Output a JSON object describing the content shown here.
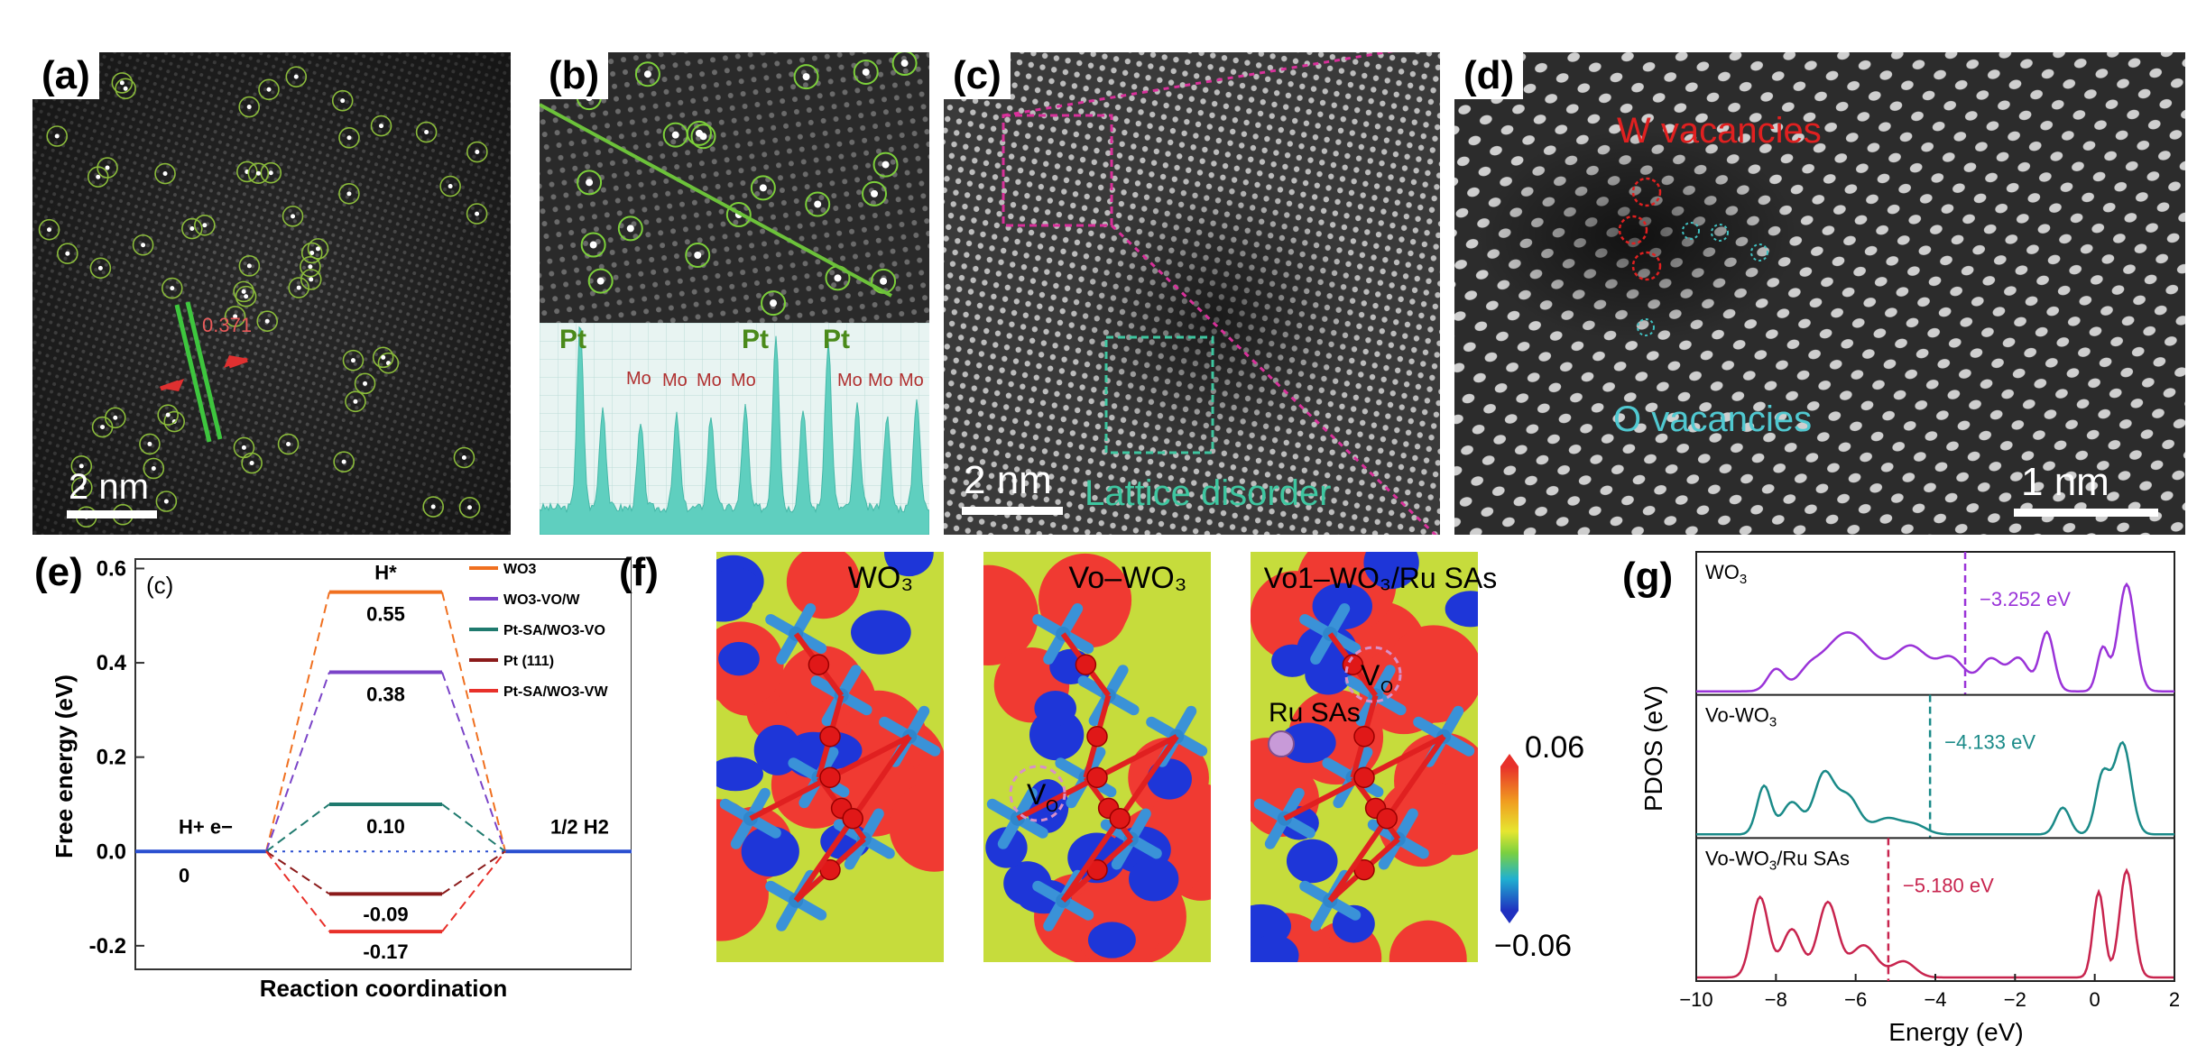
{
  "panels": {
    "a": {
      "label": "(a)",
      "scale": "2 nm",
      "measure": "0.371"
    },
    "b": {
      "label": "(b)",
      "peaks": [
        "Pt",
        "Pt",
        "Pt"
      ],
      "mo": [
        "Mo",
        "Mo",
        "Mo",
        "Mo",
        "Mo",
        "Mo",
        "Mo"
      ]
    },
    "c": {
      "label": "(c)",
      "scale": "2 nm",
      "annotation": "Lattice disorder"
    },
    "d": {
      "label": "(d)",
      "scale": "1 nm",
      "w_label": "W vacancies",
      "o_label": "O vacancies"
    },
    "e": {
      "label": "(e)",
      "sublabel": "(c)"
    },
    "f": {
      "label": "(f)",
      "titles": [
        "WO₃",
        "Vo–WO₃",
        "Vo1–WO₃/Ru SAs"
      ],
      "vo": "V",
      "vo_sub": "O",
      "ru": "Ru SAs",
      "cb_max": "0.06",
      "cb_min": "−0.06"
    },
    "g": {
      "label": "(g)"
    }
  },
  "colors": {
    "wo3": "#f07020",
    "vow": "#7b44c8",
    "ptvo": "#1f7a6e",
    "pt111": "#8b1a1a",
    "ptvw": "#e8302a",
    "baseline": "#2a4fd0",
    "pdos1": "#9a33d8",
    "pdos2": "#1a8a88",
    "pdos3": "#c8244e"
  },
  "chart_data": [
    {
      "type": "line",
      "id": "free-energy-diagram",
      "ylabel": "Free energy (eV)",
      "xlabel": "Reaction coordination",
      "ylim": [
        -0.25,
        0.62
      ],
      "yticks": [
        -0.2,
        0.0,
        0.2,
        0.4,
        0.6
      ],
      "ytick_labels": [
        "-0.2",
        "0.0",
        "0.2",
        "0.4",
        "0.6"
      ],
      "states": [
        "H⁺+ e⁻",
        "H*",
        "1/2 H₂"
      ],
      "state_labels": {
        "left": "H+ e−",
        "middle": "H*",
        "right": "1/2 H2"
      },
      "left_value_label": "0",
      "legend_position": "top-right",
      "series": [
        {
          "name": "WO3",
          "value": 0.55,
          "label": "0.55"
        },
        {
          "name": "WO3-VO/W",
          "value": 0.38,
          "label": "0.38"
        },
        {
          "name": "Pt-SA/WO3-VO",
          "value": 0.1,
          "label": "0.10"
        },
        {
          "name": "Pt (111)",
          "value": -0.09,
          "label": "-0.09"
        },
        {
          "name": "Pt-SA/WO3-VW",
          "value": -0.17,
          "label": "-0.17"
        }
      ]
    },
    {
      "type": "line",
      "id": "pdos",
      "ylabel": "PDOS (eV)",
      "xlabel": "Energy (eV)",
      "xlim": [
        -10,
        2
      ],
      "xticks": [
        -10,
        -8,
        -6,
        -4,
        -2,
        0,
        2
      ],
      "xtick_labels": [
        "−10",
        "−8",
        "−6",
        "−4",
        "−2",
        "0",
        "2"
      ],
      "series": [
        {
          "name": "WO3",
          "label": "WO",
          "sub": "3",
          "edge": -3.252,
          "edge_label": "−3.252 eV",
          "peaks": [
            [
              -8.0,
              0.2,
              0.3
            ],
            [
              -7.2,
              0.1,
              0.35
            ],
            [
              -6.2,
              0.55,
              0.9
            ],
            [
              -4.6,
              0.4,
              0.6
            ],
            [
              -3.6,
              0.3,
              0.5
            ],
            [
              -2.6,
              0.3,
              0.4
            ],
            [
              -1.9,
              0.3,
              0.35
            ],
            [
              -1.2,
              0.55,
              0.25
            ],
            [
              0.2,
              0.4,
              0.2
            ],
            [
              0.8,
              1.0,
              0.3
            ]
          ]
        },
        {
          "name": "Vo-WO3",
          "label": "Vo-WO",
          "sub": "3",
          "edge": -4.133,
          "edge_label": "−4.133 eV",
          "peaks": [
            [
              -8.3,
              0.45,
              0.25
            ],
            [
              -7.6,
              0.3,
              0.35
            ],
            [
              -6.8,
              0.55,
              0.35
            ],
            [
              -6.2,
              0.35,
              0.4
            ],
            [
              -5.2,
              0.15,
              0.5
            ],
            [
              -4.5,
              0.08,
              0.4
            ],
            [
              -0.8,
              0.25,
              0.25
            ],
            [
              0.2,
              0.55,
              0.25
            ],
            [
              0.7,
              0.85,
              0.3
            ]
          ]
        },
        {
          "name": "Vo-WO3/Ru SAs",
          "label": "Vo-WO",
          "sub": "3",
          "tail": "/Ru SAs",
          "edge": -5.18,
          "edge_label": "−5.180 eV",
          "peaks": [
            [
              -8.4,
              0.75,
              0.3
            ],
            [
              -7.6,
              0.45,
              0.35
            ],
            [
              -6.7,
              0.7,
              0.35
            ],
            [
              -5.8,
              0.3,
              0.45
            ],
            [
              -4.8,
              0.15,
              0.4
            ],
            [
              0.1,
              0.8,
              0.2
            ],
            [
              0.8,
              1.0,
              0.25
            ]
          ]
        }
      ]
    }
  ]
}
